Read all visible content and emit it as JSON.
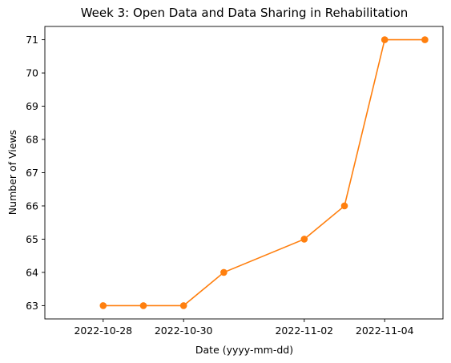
{
  "chart_data": {
    "type": "line",
    "title": "Week 3: Open Data and Data Sharing in Rehabilitation",
    "xlabel": "Date (yyyy-mm-dd)",
    "ylabel": "Number of Views",
    "x_tick_labels": [
      "2022-10-28",
      "2022-10-30",
      "2022-11-02",
      "2022-11-04"
    ],
    "y_tick_labels": [
      "63",
      "64",
      "65",
      "66",
      "67",
      "68",
      "69",
      "70",
      "71"
    ],
    "xlim": [
      "2022-10-27",
      "2022-11-05"
    ],
    "ylim": [
      62.6,
      71.4
    ],
    "grid": false,
    "series": [
      {
        "color": "#ff7f0e",
        "marker": "circle",
        "x": [
          "2022-10-28",
          "2022-10-29",
          "2022-10-30",
          "2022-10-31",
          "2022-11-02",
          "2022-11-03",
          "2022-11-04",
          "2022-11-05"
        ],
        "values": [
          63,
          63,
          63,
          64,
          65,
          66,
          71,
          71
        ]
      }
    ]
  }
}
